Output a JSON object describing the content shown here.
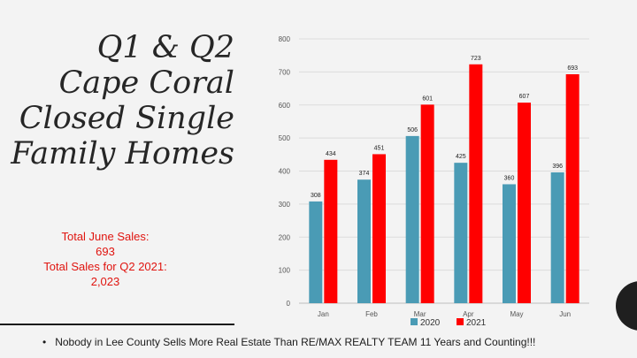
{
  "slide": {
    "title_lines": [
      "Q1 & Q2",
      "Cape Coral",
      "Closed Single",
      "Family Homes"
    ],
    "stats": {
      "june_label": "Total June Sales:",
      "june_value": "693",
      "q2_label": "Total Sales for Q2 2021:",
      "q2_value": "2,023"
    },
    "footer_bullet": "•",
    "footer_text": "Nobody in Lee County Sells More Real Estate Than RE/MAX REALTY TEAM  11 Years and Counting!!!"
  },
  "colors": {
    "series_2020": "#4a9bb5",
    "series_2021": "#ff0000",
    "stats_text": "#e0140f"
  },
  "chart_data": {
    "type": "bar",
    "categories": [
      "Jan",
      "Feb",
      "Mar",
      "Apr",
      "May",
      "Jun"
    ],
    "series": [
      {
        "name": "2020",
        "values": [
          308,
          374,
          506,
          425,
          360,
          396
        ],
        "color": "#4a9bb5"
      },
      {
        "name": "2021",
        "values": [
          434,
          451,
          601,
          723,
          607,
          693
        ],
        "color": "#ff0000"
      }
    ],
    "yticks": [
      0,
      100,
      200,
      300,
      400,
      500,
      600,
      700,
      800
    ],
    "ylim": [
      0,
      800
    ],
    "grid": true,
    "legend_position": "bottom",
    "data_labels": true
  }
}
